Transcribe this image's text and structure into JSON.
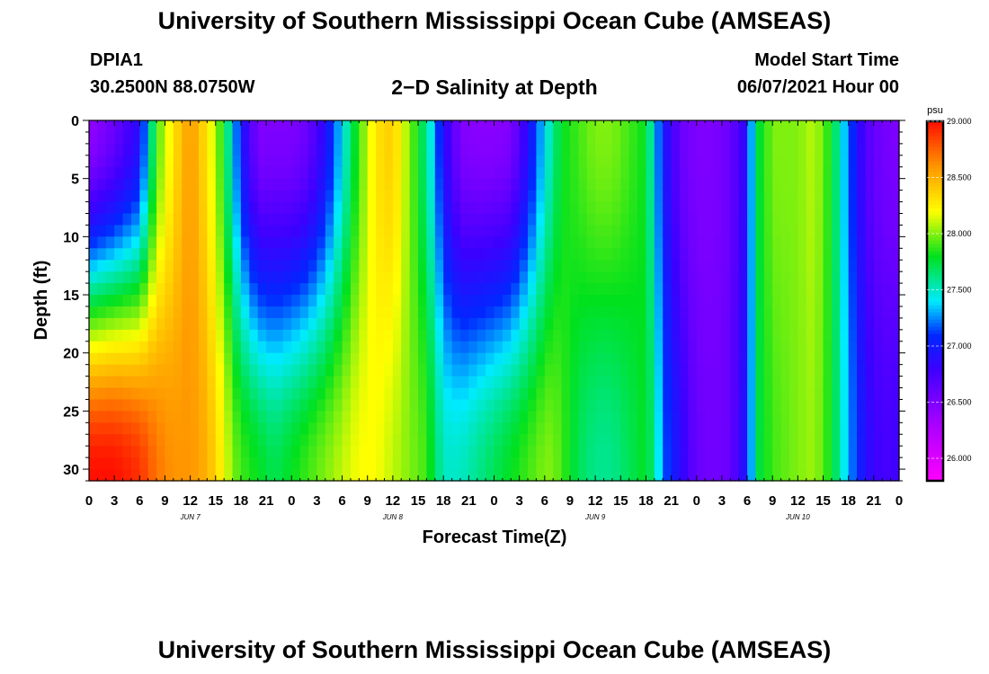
{
  "header": {
    "title": "University of Southern Mississippi Ocean Cube (AMSEAS)",
    "station_id": "DPIA1",
    "station_location": "30.2500N  88.0750W",
    "chart_title": "2−D Salinity at Depth",
    "model_start_label": "Model Start Time",
    "model_start_value": "06/07/2021 Hour 00"
  },
  "footer": {
    "title": "University of Southern Mississippi Ocean Cube (AMSEAS)"
  },
  "chart_data": {
    "type": "heatmap",
    "title": "2−D Salinity at Depth",
    "xlabel": "Forecast Time(Z)",
    "ylabel": "Depth (ft)",
    "x_tick_labels": [
      "0",
      "3",
      "6",
      "9",
      "12",
      "15",
      "18",
      "21",
      "0",
      "3",
      "6",
      "9",
      "12",
      "15",
      "18",
      "21",
      "0",
      "3",
      "6",
      "9",
      "12",
      "15",
      "18",
      "21",
      "0",
      "3",
      "6",
      "9",
      "12",
      "15",
      "18",
      "21",
      "0"
    ],
    "x_range_hours": [
      0,
      96
    ],
    "date_labels": [
      {
        "label": "JUN 7",
        "hour": 12
      },
      {
        "label": "JUN 8",
        "hour": 36
      },
      {
        "label": "JUN 9",
        "hour": 60
      },
      {
        "label": "JUN 10",
        "hour": 84
      }
    ],
    "y_tick_labels": [
      "0",
      "5",
      "10",
      "15",
      "20",
      "25",
      "30"
    ],
    "ylim": [
      0,
      31
    ],
    "y_inverted": true,
    "colorbar": {
      "unit": "psu",
      "range": [
        25.8,
        29.0
      ],
      "ticks": [
        "29.000",
        "28.500",
        "28.000",
        "27.500",
        "27.000",
        "26.500",
        "26.000"
      ]
    },
    "surface_salinity_profile": {
      "hours": [
        0,
        3,
        6,
        7,
        8,
        10,
        12,
        14,
        16,
        17,
        18,
        20,
        22,
        24,
        26,
        28,
        30,
        32,
        34,
        36,
        38,
        40,
        41,
        42,
        44,
        46,
        48,
        50,
        52,
        54,
        55,
        56,
        58,
        60,
        62,
        64,
        66,
        67,
        68,
        70,
        72,
        74,
        76,
        78,
        78.5,
        79,
        81,
        84,
        86,
        88,
        90,
        92,
        94,
        96
      ],
      "values_0ft": [
        26.4,
        26.6,
        26.9,
        27.4,
        27.9,
        28.3,
        28.6,
        28.3,
        27.8,
        27.4,
        27.0,
        26.5,
        26.5,
        26.5,
        26.6,
        26.9,
        27.4,
        27.9,
        28.3,
        28.4,
        28.0,
        27.6,
        27.3,
        26.9,
        26.5,
        26.45,
        26.45,
        26.5,
        26.9,
        27.4,
        27.6,
        27.8,
        27.9,
        28.0,
        28.0,
        27.9,
        27.8,
        27.4,
        27.0,
        26.6,
        26.5,
        26.5,
        26.6,
        26.9,
        27.3,
        27.7,
        28.0,
        28.0,
        28.1,
        27.8,
        27.2,
        26.7,
        26.55,
        26.5
      ],
      "values_31ft": [
        29.0,
        29.0,
        28.9,
        28.8,
        28.7,
        28.6,
        28.6,
        28.5,
        28.2,
        28.0,
        27.9,
        27.8,
        27.7,
        27.8,
        27.9,
        28.0,
        28.1,
        28.2,
        28.2,
        28.1,
        28.0,
        27.9,
        27.7,
        27.5,
        27.5,
        27.6,
        27.7,
        27.8,
        27.9,
        28.0,
        28.0,
        27.9,
        27.7,
        27.6,
        27.6,
        27.7,
        27.8,
        27.6,
        27.2,
        26.9,
        26.6,
        26.55,
        26.6,
        27.0,
        27.3,
        27.7,
        27.9,
        28.0,
        28.05,
        27.8,
        27.3,
        26.9,
        26.75,
        26.8
      ]
    }
  }
}
